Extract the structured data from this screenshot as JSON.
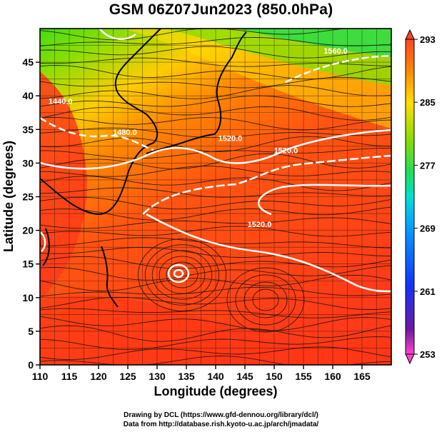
{
  "title": "GSM 06Z07Jun2023 (850.0hPa)",
  "footer": {
    "line1": "Drawing by DCL (https://www.gfd-dennou.org/library/dcl/)",
    "line2": "Data from http://database.rish.kyoto-u.ac.jp/arch/jmadata/"
  },
  "chart_data": {
    "type": "heatmap",
    "xlabel": "Longitude (degrees)",
    "ylabel": "Latitude  (degrees)",
    "xlim": [
      110,
      170
    ],
    "ylim": [
      0,
      50
    ],
    "x_ticks": [
      110,
      115,
      120,
      125,
      130,
      135,
      140,
      145,
      150,
      155,
      160,
      165
    ],
    "y_ticks": [
      0,
      5,
      10,
      15,
      20,
      25,
      30,
      35,
      40,
      45
    ],
    "colorbar": {
      "min": 253,
      "max": 293,
      "ticks": [
        293,
        285,
        277,
        269,
        261,
        253
      ],
      "colors": [
        "#ff44cc",
        "#4a1a9e",
        "#1133ff",
        "#00aaff",
        "#00e0d0",
        "#22dd55",
        "#88dd00",
        "#ffdd00",
        "#ff8800",
        "#ff4422"
      ]
    },
    "contours": [
      {
        "label": "1440.0",
        "lon": 113.5,
        "lat": 38.8
      },
      {
        "label": "1480.0",
        "lon": 124.5,
        "lat": 34.2
      },
      {
        "label": "1520.0",
        "lon": 142.5,
        "lat": 33.3
      },
      {
        "label": "1520.0",
        "lon": 152.0,
        "lat": 31.5
      },
      {
        "label": "1520.0",
        "lon": 147.5,
        "lat": 20.5
      },
      {
        "label": "1560.0",
        "lon": 160.5,
        "lat": 46.3
      }
    ]
  }
}
